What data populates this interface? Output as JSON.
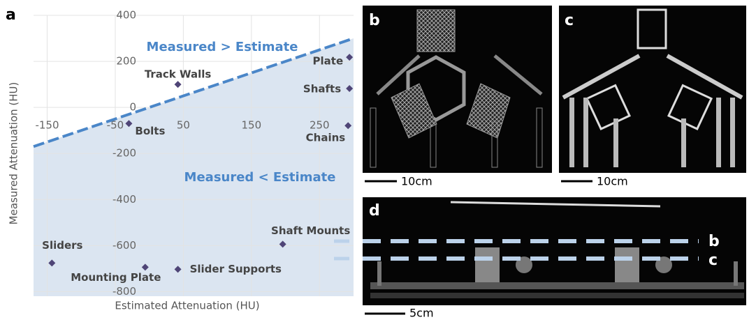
{
  "chart_data": {
    "type": "scatter",
    "panel_label": "a",
    "x_label": "Estimated Attenuation (HU)",
    "y_label": "Measured Attenuation (HU)",
    "annotations": [
      "Measured > Estimate",
      "Measured < Estimate"
    ],
    "labels": [
      "Track Walls",
      "Bolts",
      "Plate",
      "Shafts",
      "Chains",
      "Shaft Mounts",
      "Sliders",
      "Mounting Plate",
      "Slider Supports"
    ],
    "x": [
      42,
      -30,
      294,
      294,
      292,
      196,
      -143,
      -6,
      42
    ],
    "values": [
      100,
      -70,
      218,
      82,
      -79,
      -594,
      -676,
      -694,
      -703
    ],
    "color": "#4f4577",
    "xlim": [
      -170,
      300
    ],
    "ylim": [
      -820,
      400
    ],
    "xticks": [
      -150,
      -50,
      50,
      150,
      250
    ],
    "yticks": [
      400,
      200,
      0,
      -200,
      -400,
      -600,
      -800
    ],
    "grid": true
  },
  "images": [
    {
      "label": "b",
      "scale": "10cm"
    },
    {
      "label": "c",
      "scale": "10cm"
    },
    {
      "label": "d",
      "scale": "5cm",
      "lines": [
        "b",
        "c"
      ]
    }
  ]
}
